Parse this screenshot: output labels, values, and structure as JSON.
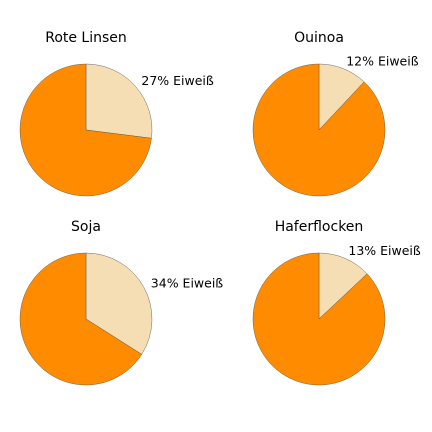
{
  "chart_data": [
    {
      "type": "pie",
      "title": "Rote Linsen",
      "slices": [
        {
          "label": "27% Eiweiß",
          "value": 27,
          "color": "#f5deb3"
        },
        {
          "label": "",
          "value": 73,
          "color": "#ff8c00"
        }
      ]
    },
    {
      "type": "pie",
      "title": "Ouinoa",
      "slices": [
        {
          "label": "12% Eiweiß",
          "value": 12,
          "color": "#f5deb3"
        },
        {
          "label": "",
          "value": 88,
          "color": "#ff8c00"
        }
      ]
    },
    {
      "type": "pie",
      "title": "Soja",
      "slices": [
        {
          "label": "34% Eiweiß",
          "value": 34,
          "color": "#f5deb3"
        },
        {
          "label": "",
          "value": 66,
          "color": "#ff8c00"
        }
      ]
    },
    {
      "type": "pie",
      "title": "Haferflocken",
      "slices": [
        {
          "label": "13% Eiweiß",
          "value": 13,
          "color": "#f5deb3"
        },
        {
          "label": "",
          "value": 87,
          "color": "#ff8c00"
        }
      ]
    }
  ]
}
